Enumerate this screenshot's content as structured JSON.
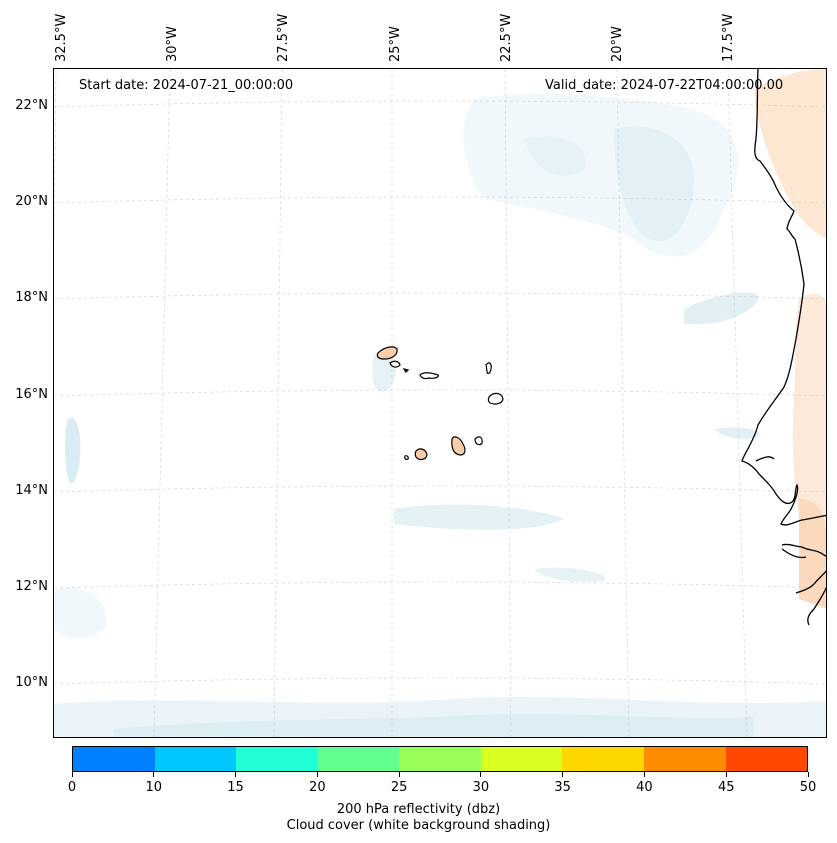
{
  "map": {
    "start_date": "Start date: 2024-07-21_00:00:00",
    "valid_date": "Valid_date: 2024-07-22T04:00:00.00",
    "lon_labels": [
      "32.5°W",
      "30°W",
      "27.5°W",
      "25°W",
      "22.5°W",
      "20°W",
      "17.5°W"
    ],
    "lat_labels": [
      "22°N",
      "20°N",
      "18°N",
      "16°N",
      "14°N",
      "12°N",
      "10°N"
    ],
    "extent": {
      "lon_min": -32.8,
      "lon_max": -15.7,
      "lat_min": 8.9,
      "lat_max": 22.8
    },
    "colors": {
      "coast": "#000000",
      "grid": "#cccccc",
      "cloud_light": "#eef7fa",
      "cloud_mid": "#dcedf3",
      "land_warm": "#fde6d2",
      "land_warm_strong": "#f9cda9"
    }
  },
  "colorbar": {
    "colors": [
      "#0080ff",
      "#00c8ff",
      "#20ffd8",
      "#60ff90",
      "#98ff58",
      "#d8ff20",
      "#ffd800",
      "#ff8c00",
      "#ff4800"
    ],
    "ticks": [
      "0",
      "10",
      "15",
      "20",
      "25",
      "30",
      "35",
      "40",
      "45",
      "50"
    ],
    "title_line1": "200 hPa reflectivity (dbz)",
    "title_line2": "Cloud cover (white background shading)"
  }
}
